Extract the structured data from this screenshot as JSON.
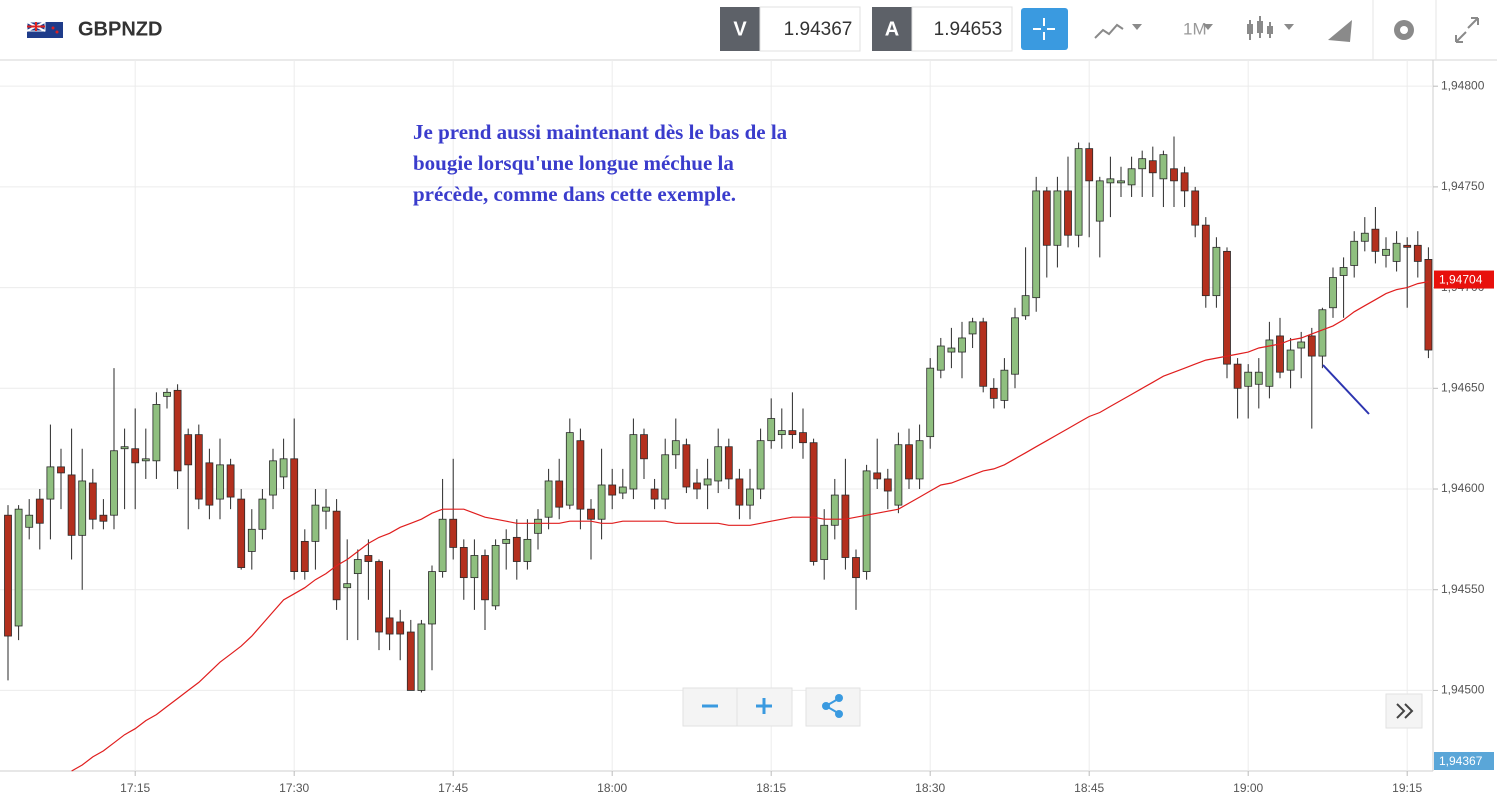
{
  "header": {
    "symbol": "GBPNZD",
    "sell_label": "V",
    "sell_price": "1.94367",
    "buy_label": "A",
    "buy_price": "1.94653",
    "timeframe": "1M"
  },
  "chart_data": {
    "type": "candlestick",
    "annotation_lines": [
      "Je prend aussi maintenant dès le bas de la",
      "bougie lorsqu'une longue méchue la",
      "précède, comme dans cette exemple."
    ],
    "categories": [
      null,
      null,
      null,
      null,
      null,
      null,
      null,
      null,
      null,
      null,
      null,
      null,
      "17:15",
      null,
      null,
      null,
      null,
      null,
      null,
      null,
      null,
      null,
      null,
      null,
      null,
      null,
      null,
      "17:30",
      null,
      null,
      null,
      null,
      null,
      null,
      null,
      null,
      null,
      null,
      null,
      null,
      null,
      null,
      "17:45",
      null,
      null,
      null,
      null,
      null,
      null,
      null,
      null,
      null,
      null,
      null,
      null,
      null,
      null,
      "18:00",
      null,
      null,
      null,
      null,
      null,
      null,
      null,
      null,
      null,
      null,
      null,
      null,
      null,
      null,
      "18:15",
      null,
      null,
      null,
      null,
      null,
      null,
      null,
      null,
      null,
      null,
      null,
      null,
      null,
      null,
      "18:30",
      null,
      null,
      null,
      null,
      null,
      null,
      null,
      null,
      null,
      null,
      null,
      null,
      null,
      null,
      "18:45",
      null,
      null,
      null,
      null,
      null,
      null,
      null,
      null,
      null,
      null,
      null,
      null,
      null,
      null,
      "19:00",
      null,
      null,
      null,
      null,
      null,
      null,
      null,
      null,
      null,
      null,
      null,
      null,
      null,
      null,
      "19:15",
      null,
      null
    ],
    "candles": [
      [
        1.94587,
        1.94592,
        1.94505,
        1.94527
      ],
      [
        1.94532,
        1.94592,
        1.94525,
        1.9459
      ],
      [
        1.94581,
        1.94595,
        1.94575,
        1.94587
      ],
      [
        1.94595,
        1.946,
        1.9457,
        1.94583
      ],
      [
        1.94595,
        1.94632,
        1.94575,
        1.94611
      ],
      [
        1.94611,
        1.9462,
        1.9459,
        1.94608
      ],
      [
        1.94607,
        1.9463,
        1.94565,
        1.94577
      ],
      [
        1.94577,
        1.9462,
        1.9455,
        1.94604
      ],
      [
        1.94603,
        1.9461,
        1.9458,
        1.94585
      ],
      [
        1.94587,
        1.94595,
        1.9458,
        1.94584
      ],
      [
        1.94587,
        1.9466,
        1.9458,
        1.94619
      ],
      [
        1.9462,
        1.9463,
        1.9459,
        1.94621
      ],
      [
        1.9462,
        1.9464,
        1.9459,
        1.94613
      ],
      [
        1.94614,
        1.9463,
        1.94605,
        1.94615
      ],
      [
        1.94614,
        1.94648,
        1.94605,
        1.94642
      ],
      [
        1.94646,
        1.9465,
        1.9464,
        1.94648
      ],
      [
        1.94649,
        1.94652,
        1.946,
        1.94609
      ],
      [
        1.94627,
        1.9463,
        1.9458,
        1.94612
      ],
      [
        1.94627,
        1.94632,
        1.9459,
        1.94595
      ],
      [
        1.94613,
        1.9462,
        1.94585,
        1.94592
      ],
      [
        1.94595,
        1.94625,
        1.94585,
        1.94612
      ],
      [
        1.94612,
        1.94615,
        1.9459,
        1.94596
      ],
      [
        1.94595,
        1.946,
        1.9456,
        1.94561
      ],
      [
        1.94569,
        1.9459,
        1.9456,
        1.9458
      ],
      [
        1.9458,
        1.946,
        1.94575,
        1.94595
      ],
      [
        1.94597,
        1.9462,
        1.9459,
        1.94614
      ],
      [
        1.94606,
        1.94625,
        1.946,
        1.94615
      ],
      [
        1.94615,
        1.94635,
        1.94555,
        1.94559
      ],
      [
        1.94574,
        1.9458,
        1.94555,
        1.94559
      ],
      [
        1.94574,
        1.946,
        1.9456,
        1.94592
      ],
      [
        1.94589,
        1.946,
        1.9458,
        1.94591
      ],
      [
        1.94589,
        1.94595,
        1.9454,
        1.94545
      ],
      [
        1.94551,
        1.94575,
        1.94525,
        1.94553
      ],
      [
        1.94558,
        1.9457,
        1.94525,
        1.94565
      ],
      [
        1.94567,
        1.94575,
        1.94545,
        1.94564
      ],
      [
        1.94564,
        1.94565,
        1.9452,
        1.94529
      ],
      [
        1.94536,
        1.9456,
        1.9452,
        1.94528
      ],
      [
        1.94534,
        1.9454,
        1.94515,
        1.94528
      ],
      [
        1.94529,
        1.94535,
        1.945,
        1.945
      ],
      [
        1.945,
        1.94535,
        1.94499,
        1.94533
      ],
      [
        1.94533,
        1.94562,
        1.9451,
        1.94559
      ],
      [
        1.94559,
        1.94605,
        1.94556,
        1.94585
      ],
      [
        1.94585,
        1.94615,
        1.94565,
        1.94571
      ],
      [
        1.94571,
        1.94575,
        1.94545,
        1.94556
      ],
      [
        1.94556,
        1.94575,
        1.9454,
        1.94567
      ],
      [
        1.94567,
        1.9457,
        1.9453,
        1.94545
      ],
      [
        1.94542,
        1.94575,
        1.9454,
        1.94572
      ],
      [
        1.94573,
        1.9458,
        1.9456,
        1.94575
      ],
      [
        1.94576,
        1.94585,
        1.94555,
        1.94564
      ],
      [
        1.94564,
        1.94585,
        1.9456,
        1.94575
      ],
      [
        1.94578,
        1.9459,
        1.9457,
        1.94585
      ],
      [
        1.94586,
        1.9461,
        1.9458,
        1.94604
      ],
      [
        1.94604,
        1.94615,
        1.94585,
        1.94591
      ],
      [
        1.94592,
        1.94635,
        1.9459,
        1.94628
      ],
      [
        1.94624,
        1.9463,
        1.9458,
        1.9459
      ],
      [
        1.9459,
        1.94595,
        1.94565,
        1.94585
      ],
      [
        1.94585,
        1.9462,
        1.94575,
        1.94602
      ],
      [
        1.94602,
        1.9461,
        1.9459,
        1.94597
      ],
      [
        1.94598,
        1.9461,
        1.94595,
        1.94601
      ],
      [
        1.946,
        1.94635,
        1.94595,
        1.94627
      ],
      [
        1.94627,
        1.9463,
        1.94605,
        1.94615
      ],
      [
        1.946,
        1.94605,
        1.9459,
        1.94595
      ],
      [
        1.94595,
        1.94625,
        1.9459,
        1.94617
      ],
      [
        1.94617,
        1.94635,
        1.9461,
        1.94624
      ],
      [
        1.94622,
        1.94625,
        1.94598,
        1.94601
      ],
      [
        1.94603,
        1.9461,
        1.94595,
        1.946
      ],
      [
        1.94602,
        1.94615,
        1.9459,
        1.94605
      ],
      [
        1.94604,
        1.9463,
        1.94598,
        1.94621
      ],
      [
        1.94621,
        1.94625,
        1.946,
        1.94605
      ],
      [
        1.94605,
        1.9461,
        1.94585,
        1.94592
      ],
      [
        1.94592,
        1.9461,
        1.94585,
        1.946
      ],
      [
        1.946,
        1.9463,
        1.94595,
        1.94624
      ],
      [
        1.94624,
        1.94645,
        1.9462,
        1.94635
      ],
      [
        1.94627,
        1.9464,
        1.9462,
        1.94629
      ],
      [
        1.94629,
        1.94648,
        1.9462,
        1.94627
      ],
      [
        1.94628,
        1.9464,
        1.94615,
        1.94623
      ],
      [
        1.94623,
        1.94625,
        1.94562,
        1.94564
      ],
      [
        1.94565,
        1.9459,
        1.94555,
        1.94582
      ],
      [
        1.94582,
        1.94605,
        1.94575,
        1.94597
      ],
      [
        1.94597,
        1.94615,
        1.9456,
        1.94566
      ],
      [
        1.94566,
        1.9457,
        1.9454,
        1.94556
      ],
      [
        1.94559,
        1.94612,
        1.94555,
        1.94609
      ],
      [
        1.94608,
        1.94625,
        1.946,
        1.94605
      ],
      [
        1.94605,
        1.9461,
        1.9459,
        1.94599
      ],
      [
        1.94592,
        1.94628,
        1.94588,
        1.94622
      ],
      [
        1.94622,
        1.9463,
        1.946,
        1.94605
      ],
      [
        1.94605,
        1.94632,
        1.946,
        1.94624
      ],
      [
        1.94626,
        1.94665,
        1.9462,
        1.9466
      ],
      [
        1.94659,
        1.94675,
        1.94655,
        1.94671
      ],
      [
        1.94668,
        1.9468,
        1.9466,
        1.9467
      ],
      [
        1.94668,
        1.94683,
        1.94655,
        1.94675
      ],
      [
        1.94677,
        1.94685,
        1.9467,
        1.94683
      ],
      [
        1.94683,
        1.94685,
        1.94648,
        1.94651
      ],
      [
        1.9465,
        1.94655,
        1.9464,
        1.94645
      ],
      [
        1.94644,
        1.94665,
        1.9464,
        1.94659
      ],
      [
        1.94657,
        1.9469,
        1.9465,
        1.94685
      ],
      [
        1.94686,
        1.9472,
        1.94684,
        1.94696
      ],
      [
        1.94695,
        1.94755,
        1.94688,
        1.94748
      ],
      [
        1.94748,
        1.9475,
        1.94705,
        1.94721
      ],
      [
        1.94721,
        1.94755,
        1.9471,
        1.94748
      ],
      [
        1.94748,
        1.94765,
        1.9472,
        1.94726
      ],
      [
        1.94726,
        1.94772,
        1.9472,
        1.94769
      ],
      [
        1.94769,
        1.94772,
        1.94725,
        1.94753
      ],
      [
        1.94733,
        1.94755,
        1.94715,
        1.94753
      ],
      [
        1.94752,
        1.94765,
        1.94735,
        1.94754
      ],
      [
        1.94752,
        1.9476,
        1.94745,
        1.94753
      ],
      [
        1.94751,
        1.94765,
        1.94745,
        1.94759
      ],
      [
        1.94759,
        1.94768,
        1.94745,
        1.94764
      ],
      [
        1.94763,
        1.9477,
        1.94745,
        1.94757
      ],
      [
        1.94754,
        1.94768,
        1.9474,
        1.94766
      ],
      [
        1.94759,
        1.94775,
        1.9474,
        1.94753
      ],
      [
        1.94757,
        1.9476,
        1.9474,
        1.94748
      ],
      [
        1.94748,
        1.9475,
        1.94725,
        1.94731
      ],
      [
        1.94731,
        1.94735,
        1.9469,
        1.94696
      ],
      [
        1.94696,
        1.94725,
        1.9469,
        1.9472
      ],
      [
        1.94718,
        1.9472,
        1.94655,
        1.94662
      ],
      [
        1.94662,
        1.94665,
        1.94635,
        1.9465
      ],
      [
        1.94651,
        1.94662,
        1.94635,
        1.94658
      ],
      [
        1.94652,
        1.94665,
        1.9464,
        1.94658
      ],
      [
        1.94651,
        1.94683,
        1.94645,
        1.94674
      ],
      [
        1.94676,
        1.94685,
        1.94655,
        1.94658
      ],
      [
        1.94659,
        1.94675,
        1.9465,
        1.94669
      ],
      [
        1.9467,
        1.94678,
        1.94655,
        1.94673
      ],
      [
        1.94676,
        1.9468,
        1.9463,
        1.94666
      ],
      [
        1.94666,
        1.9469,
        1.9466,
        1.94689
      ],
      [
        1.9469,
        1.9471,
        1.94685,
        1.94705
      ],
      [
        1.94706,
        1.94715,
        1.94685,
        1.9471
      ],
      [
        1.94711,
        1.94728,
        1.94705,
        1.94723
      ],
      [
        1.94723,
        1.94735,
        1.94718,
        1.94727
      ],
      [
        1.94729,
        1.9474,
        1.94712,
        1.94718
      ],
      [
        1.94716,
        1.94725,
        1.9471,
        1.94719
      ],
      [
        1.94713,
        1.94728,
        1.94708,
        1.94722
      ],
      [
        1.94721,
        1.94725,
        1.9469,
        1.9472
      ],
      [
        1.94721,
        1.94728,
        1.94705,
        1.94713
      ],
      [
        1.94714,
        1.9472,
        1.94665,
        1.94669
      ]
    ],
    "up_color": "#8fbf7f",
    "down_color": "#b3301e",
    "border_color": "#2a2a2a",
    "moving_average": {
      "color": "#e01e1e",
      "values": [
        null,
        null,
        null,
        null,
        null,
        null,
        1.9446,
        1.94463,
        1.94467,
        1.9447,
        1.94474,
        1.94478,
        1.94481,
        1.94485,
        1.94488,
        1.94492,
        1.94496,
        1.945,
        1.94504,
        1.94509,
        1.94514,
        1.94518,
        1.94522,
        1.94527,
        1.94533,
        1.94539,
        1.94545,
        1.94548,
        1.94551,
        1.94555,
        1.94558,
        1.94562,
        1.94565,
        1.94569,
        1.94573,
        1.94576,
        1.94578,
        1.94581,
        1.94583,
        1.94585,
        1.94588,
        1.9459,
        1.9459,
        1.9459,
        1.94588,
        1.94586,
        1.94585,
        1.94584,
        1.94583,
        1.94583,
        1.94583,
        1.94583,
        1.94583,
        1.94584,
        1.94584,
        1.94584,
        1.94583,
        1.94583,
        1.94584,
        1.94584,
        1.94584,
        1.94584,
        1.94584,
        1.94583,
        1.94583,
        1.94583,
        1.94583,
        1.94583,
        1.94582,
        1.94582,
        1.94582,
        1.94583,
        1.94584,
        1.94585,
        1.94586,
        1.94586,
        1.94586,
        1.94585,
        1.94585,
        1.94585,
        1.94586,
        1.94587,
        1.94588,
        1.94589,
        1.9459,
        1.94593,
        1.94596,
        1.94599,
        1.94602,
        1.94603,
        1.94605,
        1.94607,
        1.94609,
        1.9461,
        1.94612,
        1.94615,
        1.94618,
        1.94621,
        1.94624,
        1.94627,
        1.9463,
        1.94633,
        1.94636,
        1.94638,
        1.94641,
        1.94644,
        1.94647,
        1.9465,
        1.94653,
        1.94656,
        1.94658,
        1.9466,
        1.94662,
        1.94664,
        1.94665,
        1.94666,
        1.94667,
        1.94668,
        1.9467,
        1.94671,
        1.94672,
        1.94674,
        1.94675,
        1.94677,
        1.94679,
        1.94681,
        1.94684,
        1.94688,
        1.94691,
        1.94694,
        1.94697,
        1.94699,
        1.947,
        1.94702,
        1.94703
      ]
    },
    "ylim": [
      1.9446,
      1.94813
    ],
    "yticks": [
      {
        "value": 1.945,
        "label": "1,94500"
      },
      {
        "value": 1.9455,
        "label": "1,94550"
      },
      {
        "value": 1.946,
        "label": "1,94600"
      },
      {
        "value": 1.9465,
        "label": "1,94650"
      },
      {
        "value": 1.947,
        "label": "1,94700"
      },
      {
        "value": 1.9475,
        "label": "1,94750"
      },
      {
        "value": 1.948,
        "label": "1,94800"
      }
    ],
    "grid": true,
    "price_markers": [
      {
        "value": 1.94704,
        "label": "1,94704",
        "color": "#e8100c"
      },
      {
        "value": 1.94367,
        "label": "1,94367",
        "color": "#5aa6d8"
      }
    ]
  }
}
